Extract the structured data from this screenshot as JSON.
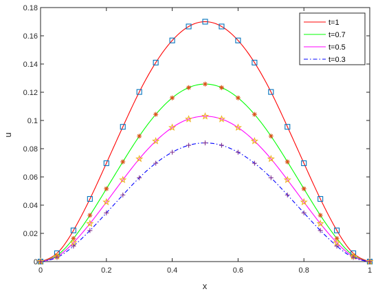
{
  "chart_data": {
    "type": "line",
    "title": "",
    "xlabel": "x",
    "ylabel": "u",
    "xlim": [
      0,
      1
    ],
    "ylim": [
      0,
      0.18
    ],
    "x_ticks": [
      0,
      0.2,
      0.4,
      0.6,
      0.8,
      1
    ],
    "x_tick_labels": [
      "0",
      "0.2",
      "0.4",
      "0.6",
      "0.8",
      "1"
    ],
    "y_ticks": [
      0,
      0.02,
      0.04,
      0.06,
      0.08,
      0.1,
      0.12,
      0.14,
      0.16,
      0.18
    ],
    "y_tick_labels": [
      "0",
      "0.02",
      "0.04",
      "0.06",
      "0.08",
      "0.1",
      "0.12",
      "0.14",
      "0.16",
      "0.18"
    ],
    "grid": false,
    "legend_position": "top-right",
    "x": [
      0,
      0.05,
      0.1,
      0.15,
      0.2,
      0.25,
      0.3,
      0.35,
      0.4,
      0.45,
      0.5,
      0.55,
      0.6,
      0.65,
      0.7,
      0.75,
      0.8,
      0.85,
      0.9,
      0.95,
      1
    ],
    "series": [
      {
        "name": "t=1",
        "line_color": "#ff0000",
        "line_style": "solid",
        "marker": "square",
        "marker_color": "#0072bd",
        "values": [
          0,
          0.0059,
          0.0221,
          0.0444,
          0.0697,
          0.0955,
          0.1202,
          0.141,
          0.1567,
          0.1666,
          0.17,
          0.1666,
          0.1567,
          0.141,
          0.1202,
          0.0955,
          0.0697,
          0.0444,
          0.0221,
          0.0059,
          0
        ]
      },
      {
        "name": "t=0.7",
        "line_color": "#00ff00",
        "line_style": "solid",
        "marker": "asterisk",
        "marker_color": "#d95319",
        "values": [
          0,
          0.0044,
          0.0164,
          0.0328,
          0.0516,
          0.0707,
          0.0889,
          0.1043,
          0.116,
          0.1233,
          0.1258,
          0.1233,
          0.116,
          0.1043,
          0.0889,
          0.0707,
          0.0516,
          0.0328,
          0.0164,
          0.0044,
          0
        ]
      },
      {
        "name": "t=0.5",
        "line_color": "#ff00ff",
        "line_style": "solid",
        "marker": "star",
        "marker_color": "#edb120",
        "values": [
          0,
          0.0036,
          0.0134,
          0.0269,
          0.0422,
          0.0579,
          0.0728,
          0.0854,
          0.095,
          0.101,
          0.103,
          0.101,
          0.095,
          0.0854,
          0.0728,
          0.0579,
          0.0422,
          0.0269,
          0.0134,
          0.0036,
          0
        ]
      },
      {
        "name": "t=0.3",
        "line_color": "#0000ff",
        "line_style": "dashdot",
        "marker": "plus",
        "marker_color": "#7e2f8e",
        "values": [
          0,
          0.0029,
          0.011,
          0.022,
          0.0345,
          0.0472,
          0.0594,
          0.0697,
          0.0775,
          0.0824,
          0.0841,
          0.0824,
          0.0775,
          0.0697,
          0.0594,
          0.0472,
          0.0345,
          0.022,
          0.011,
          0.0029,
          0
        ]
      }
    ]
  }
}
